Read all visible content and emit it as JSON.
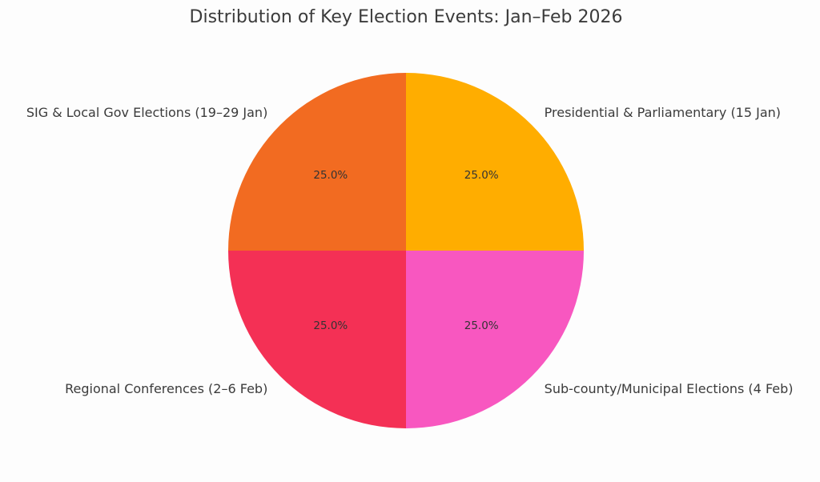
{
  "chart_data": {
    "type": "pie",
    "title": "Distribution of Key Election Events: Jan–Feb 2026",
    "start_angle_deg": 90,
    "direction": "clockwise",
    "slices": [
      {
        "label": "Presidential & Parliamentary (15 Jan)",
        "value": 25.0,
        "pct_label": "25.0%",
        "color": "#FFAD00"
      },
      {
        "label": "Sub-county/Municipal Elections (4 Feb)",
        "value": 25.0,
        "pct_label": "25.0%",
        "color": "#F857C0"
      },
      {
        "label": "Regional Conferences (2–6 Feb)",
        "value": 25.0,
        "pct_label": "25.0%",
        "color": "#F43055"
      },
      {
        "label": "SIG & Local Gov Elections (19–29 Jan)",
        "value": 25.0,
        "pct_label": "25.0%",
        "color": "#F26B21"
      }
    ]
  }
}
